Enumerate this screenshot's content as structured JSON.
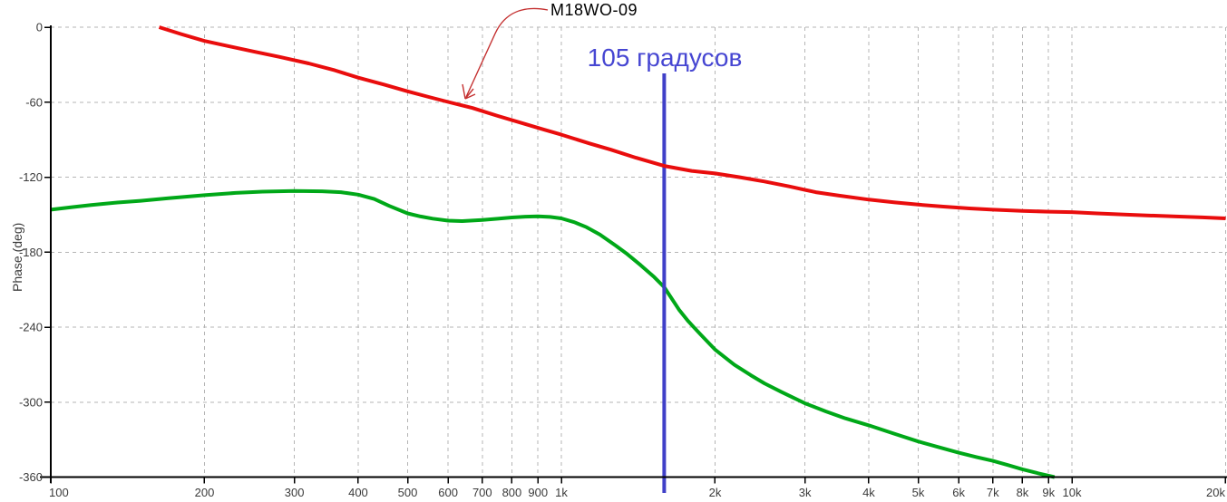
{
  "colors": {
    "background": "#ffffff",
    "red_curve": "#e90d0d",
    "green_curve": "#00a818",
    "marker_line": "#4040c8",
    "marker_text": "#4646d2",
    "annotation_text": "#000000",
    "annotation_arrow": "#c43030",
    "grid": "#b5b5b5",
    "axis": "#000000",
    "tick_text": "#3b3b3b"
  },
  "annotation": {
    "text": "M18WO-09"
  },
  "chart_data": {
    "type": "line",
    "x_scale": "log",
    "xlim": [
      100,
      20000
    ],
    "ylim": [
      -360,
      0
    ],
    "xlabel": "",
    "ylabel": "Phase (deg)",
    "grid": true,
    "legend_position": "none",
    "x_ticks": [
      {
        "f": 100,
        "label": "100"
      },
      {
        "f": 200,
        "label": "200"
      },
      {
        "f": 300,
        "label": "300"
      },
      {
        "f": 400,
        "label": "400"
      },
      {
        "f": 500,
        "label": "500"
      },
      {
        "f": 600,
        "label": "600"
      },
      {
        "f": 700,
        "label": "700"
      },
      {
        "f": 800,
        "label": "800"
      },
      {
        "f": 900,
        "label": "900"
      },
      {
        "f": 1000,
        "label": "1k"
      },
      {
        "f": 2000,
        "label": "2k"
      },
      {
        "f": 3000,
        "label": "3k"
      },
      {
        "f": 4000,
        "label": "4k"
      },
      {
        "f": 5000,
        "label": "5k"
      },
      {
        "f": 6000,
        "label": "6k"
      },
      {
        "f": 7000,
        "label": "7k"
      },
      {
        "f": 8000,
        "label": "8k"
      },
      {
        "f": 9000,
        "label": "9k"
      },
      {
        "f": 10000,
        "label": "10k"
      },
      {
        "f": 20000,
        "label": "20k"
      }
    ],
    "y_ticks": [
      {
        "v": 0,
        "label": "0"
      },
      {
        "v": -60,
        "label": "-60"
      },
      {
        "v": -120,
        "label": "-120"
      },
      {
        "v": -180,
        "label": "-180"
      },
      {
        "v": -240,
        "label": "-240"
      },
      {
        "v": -300,
        "label": "-300"
      },
      {
        "v": -360,
        "label": "-360"
      }
    ],
    "marker": {
      "label": "105 градусов",
      "x_hz": 1590
    },
    "annotation": {
      "text": "M18WO-09",
      "points_to": "red",
      "target_hz": 640,
      "target_deg": -62
    },
    "series": [
      {
        "id": "red",
        "label": "M18WO-09",
        "color": "#e90d0d",
        "points": [
          [
            163,
            0
          ],
          [
            180,
            -5.5
          ],
          [
            200,
            -11
          ],
          [
            225,
            -15.5
          ],
          [
            250,
            -19.5
          ],
          [
            280,
            -23.7
          ],
          [
            320,
            -29
          ],
          [
            360,
            -34.5
          ],
          [
            400,
            -40.4
          ],
          [
            450,
            -46
          ],
          [
            500,
            -51.3
          ],
          [
            550,
            -55.8
          ],
          [
            600,
            -59.8
          ],
          [
            670,
            -64.7
          ],
          [
            750,
            -71
          ],
          [
            850,
            -77.5
          ],
          [
            925,
            -82
          ],
          [
            1000,
            -86
          ],
          [
            1135,
            -93
          ],
          [
            1250,
            -98
          ],
          [
            1400,
            -104.5
          ],
          [
            1590,
            -111
          ],
          [
            1800,
            -115
          ],
          [
            2000,
            -117
          ],
          [
            2230,
            -120
          ],
          [
            2500,
            -123.5
          ],
          [
            2800,
            -127.5
          ],
          [
            3150,
            -132
          ],
          [
            3500,
            -134.8
          ],
          [
            4000,
            -138
          ],
          [
            4500,
            -140.2
          ],
          [
            5000,
            -142
          ],
          [
            5600,
            -143.6
          ],
          [
            6300,
            -145
          ],
          [
            7000,
            -146
          ],
          [
            8000,
            -147
          ],
          [
            9000,
            -147.6
          ],
          [
            10000,
            -148
          ],
          [
            11200,
            -149
          ],
          [
            12500,
            -149.8
          ],
          [
            14000,
            -150.6
          ],
          [
            16000,
            -151.5
          ],
          [
            18000,
            -152.2
          ],
          [
            20000,
            -153
          ]
        ]
      },
      {
        "id": "green",
        "label": "",
        "color": "#00a818",
        "points": [
          [
            100,
            -146
          ],
          [
            110,
            -144
          ],
          [
            120,
            -142.3
          ],
          [
            135,
            -140.3
          ],
          [
            150,
            -138.9
          ],
          [
            170,
            -136.8
          ],
          [
            200,
            -134.4
          ],
          [
            230,
            -132.6
          ],
          [
            260,
            -131.6
          ],
          [
            300,
            -131.1
          ],
          [
            340,
            -131.3
          ],
          [
            370,
            -132
          ],
          [
            400,
            -134
          ],
          [
            430,
            -137.5
          ],
          [
            460,
            -143
          ],
          [
            500,
            -149
          ],
          [
            530,
            -151.5
          ],
          [
            560,
            -153.2
          ],
          [
            600,
            -154.8
          ],
          [
            640,
            -155.2
          ],
          [
            700,
            -154.3
          ],
          [
            750,
            -153.3
          ],
          [
            800,
            -152.3
          ],
          [
            850,
            -151.6
          ],
          [
            900,
            -151.3
          ],
          [
            950,
            -151.8
          ],
          [
            1000,
            -153
          ],
          [
            1060,
            -156
          ],
          [
            1120,
            -160
          ],
          [
            1190,
            -166
          ],
          [
            1280,
            -175
          ],
          [
            1340,
            -181
          ],
          [
            1430,
            -190.5
          ],
          [
            1520,
            -200
          ],
          [
            1590,
            -208
          ],
          [
            1700,
            -226
          ],
          [
            1770,
            -235
          ],
          [
            1875,
            -246
          ],
          [
            2000,
            -258
          ],
          [
            2180,
            -270
          ],
          [
            2350,
            -278.5
          ],
          [
            2500,
            -285
          ],
          [
            2700,
            -292
          ],
          [
            3000,
            -301
          ],
          [
            3300,
            -307.5
          ],
          [
            3600,
            -313
          ],
          [
            4000,
            -318.6
          ],
          [
            4500,
            -325.5
          ],
          [
            5000,
            -331.5
          ],
          [
            5500,
            -336.2
          ],
          [
            6000,
            -340.5
          ],
          [
            6500,
            -344
          ],
          [
            7000,
            -347
          ],
          [
            7500,
            -350.4
          ],
          [
            8000,
            -353.8
          ],
          [
            8600,
            -357
          ],
          [
            9245,
            -360
          ]
        ]
      }
    ]
  }
}
